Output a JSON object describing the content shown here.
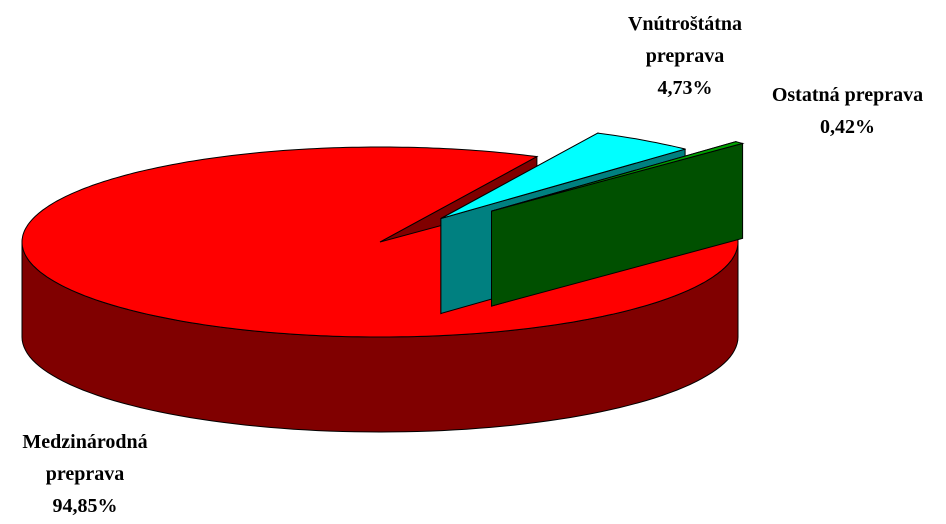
{
  "chart_data": {
    "type": "pie3d",
    "categories": [
      "Medzinárodná preprava",
      "Vnútroštátna preprava",
      "Ostatná preprava"
    ],
    "values": [
      94.85,
      4.73,
      0.42
    ],
    "value_labels": [
      "94,85%",
      "4,73%",
      "0,42%"
    ],
    "colors": [
      "#ff0000",
      "#00ffff",
      "#00a000"
    ]
  }
}
